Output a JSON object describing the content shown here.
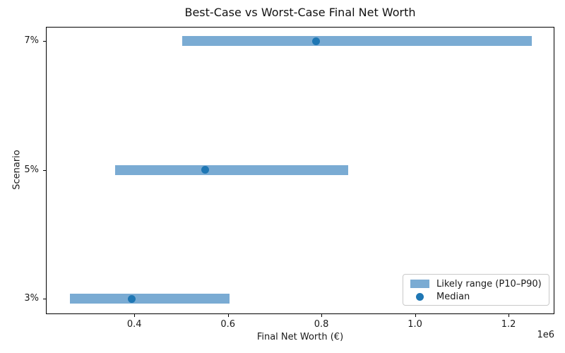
{
  "figure": {
    "title": "Best-Case vs Worst-Case Final Net Worth",
    "xlabel": "Final Net Worth (€)",
    "ylabel": "Scenario",
    "offset_text": "1e6"
  },
  "legend": {
    "range_label": "Likely range (P10–P90)",
    "median_label": "Median"
  },
  "colors": {
    "bar": "#7aabd3",
    "median_dot": "#1f77b4",
    "spine": "#000000",
    "text": "#1a1a1a"
  },
  "chart_data": {
    "type": "bar",
    "orientation": "horizontal",
    "title": "Best-Case vs Worst-Case Final Net Worth",
    "xlabel": "Final Net Worth (€)",
    "ylabel": "Scenario",
    "categories": [
      "3%",
      "5%",
      "7%"
    ],
    "series": [
      {
        "name": "P10",
        "values": [
          262000,
          359000,
          502000
        ]
      },
      {
        "name": "Median",
        "values": [
          395000,
          551000,
          788000
        ]
      },
      {
        "name": "P90",
        "values": [
          603000,
          857000,
          1250000
        ]
      }
    ],
    "xlim": [
      211000,
      1298000
    ],
    "xticks": [
      400000,
      600000,
      800000,
      1000000,
      1200000
    ],
    "xtick_labels": [
      "0.4",
      "0.6",
      "0.8",
      "1.0",
      "1.2"
    ],
    "x_offset_label": "1e6",
    "legend": [
      "Likely range (P10–P90)",
      "Median"
    ],
    "legend_position": "lower right",
    "grid": false
  }
}
